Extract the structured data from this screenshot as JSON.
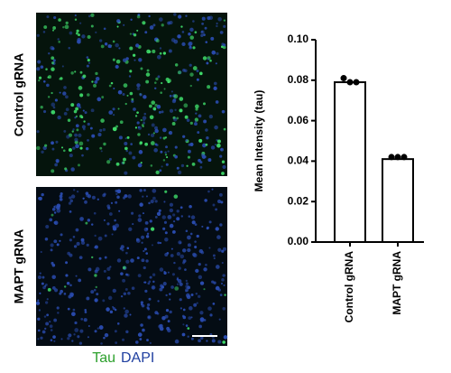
{
  "panels": {
    "row_labels": [
      "Control gRNA",
      "MAPT gRNA"
    ],
    "stain_labels": [
      {
        "text": "Tau",
        "color": "#2ca02c"
      },
      {
        "text": "DAPI",
        "color": "#1f3fa0"
      }
    ]
  },
  "chart_data": {
    "type": "bar",
    "y_label": "Mean Intensity (tau)",
    "categories": [
      "Control gRNA",
      "MAPT gRNA"
    ],
    "values": [
      0.079,
      0.041
    ],
    "color": "#ffffff",
    "points": [
      [
        0.081,
        0.079,
        0.079
      ],
      [
        0.042,
        0.042,
        0.042
      ]
    ],
    "ylim": [
      0,
      0.1
    ],
    "yticks": [
      {
        "value": 0,
        "label": "0.00"
      },
      0.02,
      0.04,
      0.06,
      0.08,
      {
        "value": 0.1,
        "label": "0.10"
      }
    ]
  }
}
